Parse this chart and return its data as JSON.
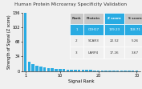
{
  "title": "Human Protein Microarray Specificity Validation",
  "xlabel": "Signal Rank",
  "ylabel": "Strength of Signal (Z score)",
  "bar_color": "#29abe2",
  "table_header_color": "#29abe2",
  "table_row1_color": "#29abe2",
  "table_row2_color": "#f0f0f0",
  "table_row3_color": "#f0f0f0",
  "bg_color": "#f0f0f0",
  "yticks": [
    0,
    34,
    68,
    102,
    136
  ],
  "xticks": [
    1,
    10,
    20,
    30
  ],
  "xticklabels": [
    "1",
    "10",
    "20",
    "30"
  ],
  "table_headers": [
    "Rank",
    "Protein",
    "Z score",
    "S score"
  ],
  "table_data": [
    [
      "1",
      "CDH17",
      "139.23",
      "118.71"
    ],
    [
      "2",
      "SCAR3",
      "22.52",
      "5.26"
    ],
    [
      "3",
      "LARP4",
      "17.26",
      "3.67"
    ]
  ],
  "signal_values": [
    139.23,
    22.52,
    17.26,
    13.5,
    10.8,
    8.9,
    7.5,
    6.5,
    5.7,
    5.1,
    4.6,
    4.2,
    3.8,
    3.5,
    3.2,
    3.0,
    2.8,
    2.6,
    2.4,
    2.3,
    2.1,
    2.0,
    1.9,
    1.8,
    1.7,
    1.6,
    1.5,
    1.4,
    1.3,
    1.2
  ],
  "xlim": [
    0.3,
    31
  ],
  "ylim": [
    0,
    136
  ]
}
